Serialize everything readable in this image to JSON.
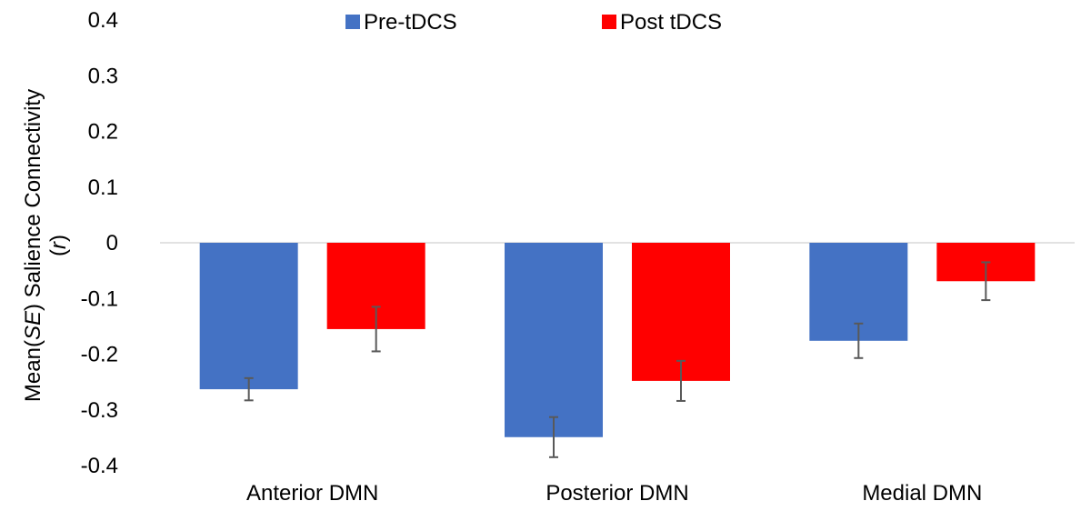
{
  "chart_data": {
    "type": "bar",
    "categories": [
      "Anterior DMN",
      "Posterior DMN",
      "Medial DMN"
    ],
    "series": [
      {
        "name": "Pre-tDCS",
        "color": "#4472C4",
        "values": [
          -0.263,
          -0.349,
          -0.176
        ],
        "errors": [
          0.02,
          0.036,
          0.031
        ]
      },
      {
        "name": "Post tDCS",
        "color": "#FF0000",
        "values": [
          -0.155,
          -0.248,
          -0.069
        ],
        "errors": [
          0.04,
          0.036,
          0.034
        ]
      }
    ],
    "ylabel": {
      "prefix": "Mean(",
      "italic": "SE",
      "suffix": ") Salience Connectivity",
      "line2_prefix": "(",
      "line2_italic": "r",
      "line2_suffix": ")"
    },
    "yticks": [
      "0.4",
      "0.3",
      "0.2",
      "0.1",
      "0",
      "-0.1",
      "-0.2",
      "-0.3",
      "-0.4"
    ],
    "ylim": [
      -0.4,
      0.4
    ],
    "legend_position": "top-center",
    "grid": false,
    "zero_line_color": "#D9D9D9",
    "error_bar_color": "#595959"
  }
}
